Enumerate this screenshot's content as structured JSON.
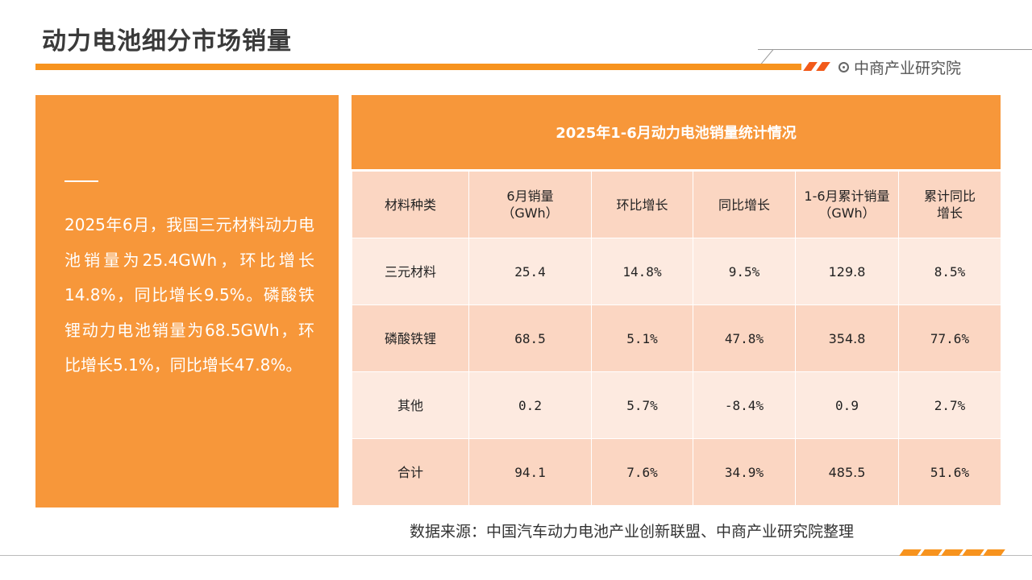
{
  "header": {
    "title": "动力电池细分市场销量",
    "brand": "中商产业研究院",
    "accent_color": "#f7931e"
  },
  "summary": {
    "text": "2025年6月，我国三元材料动力电池销量为25.4GWh，环比增长14.8%，同比增长9.5%。磷酸铁锂动力电池销量为68.5GWh，环比增长5.1%，同比增长47.8%。"
  },
  "table": {
    "title": "2025年1-6月动力电池销量统计情况",
    "headers": [
      "材料种类",
      "6月销量\n（GWh）",
      "环比增长",
      "同比增长",
      "1-6月累计销量\n（GWh）",
      "累计同比\n增长"
    ],
    "rows": [
      [
        "三元材料",
        "25.4",
        "14.8%",
        "9.5%",
        "129.8",
        "8.5%"
      ],
      [
        "磷酸铁锂",
        "68.5",
        "5.1%",
        "47.8%",
        "354.8",
        "77.6%"
      ],
      [
        "其他",
        "0.2",
        "5.7%",
        "-8.4%",
        "0.9",
        "2.7%"
      ],
      [
        "合计",
        "94.1",
        "7.6%",
        "34.9%",
        "485.5",
        "51.6%"
      ]
    ]
  },
  "footer": {
    "source": "数据来源：中国汽车动力电池产业创新联盟、中商产业研究院整理"
  }
}
